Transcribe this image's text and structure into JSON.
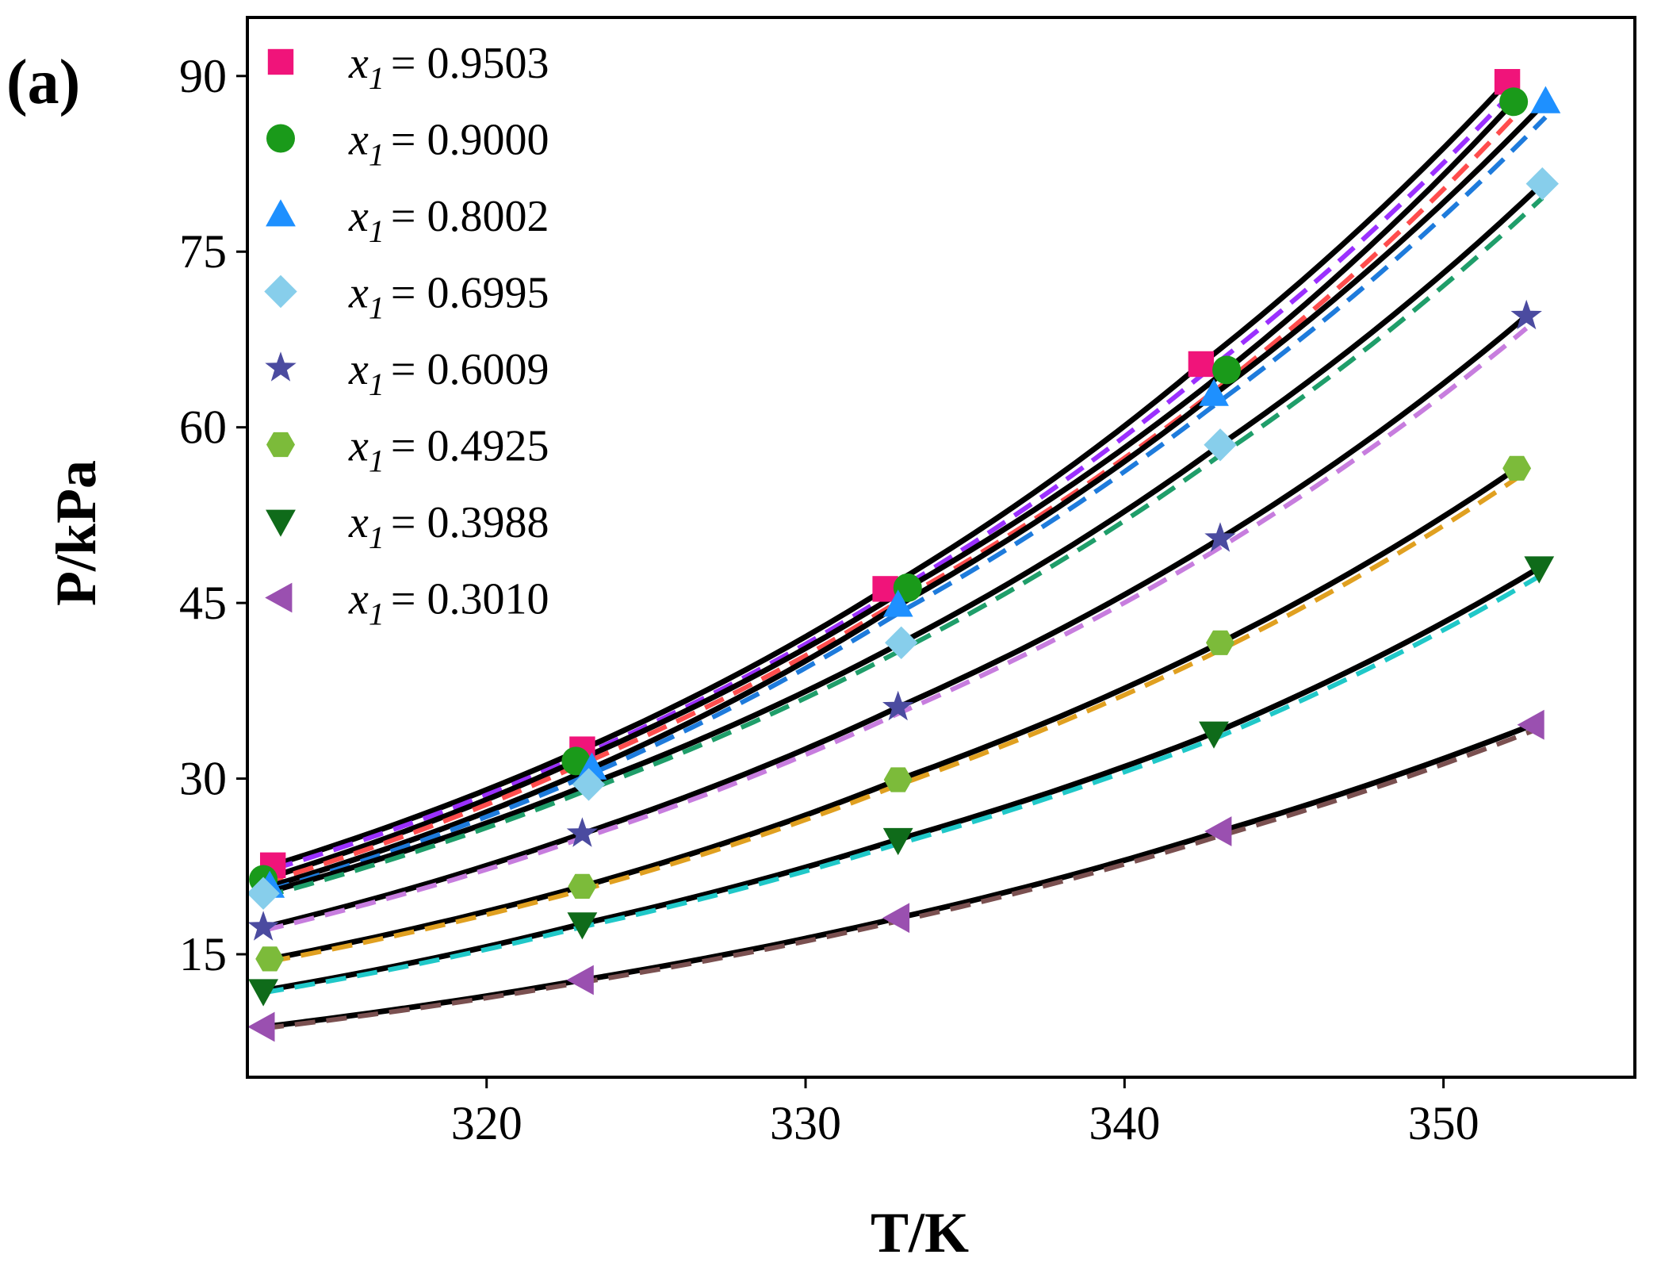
{
  "panel_label": "(a)",
  "chart_data": {
    "type": "scatter",
    "title": "",
    "xlabel": "T/K",
    "ylabel": "P/kPa",
    "xlim": [
      312.5,
      356
    ],
    "ylim": [
      4.5,
      95
    ],
    "xticks": [
      320,
      330,
      340,
      350
    ],
    "yticks": [
      15,
      30,
      45,
      60,
      75,
      90
    ],
    "legend_position": "top-left",
    "legend_var": "x",
    "legend_sub": "1",
    "series": [
      {
        "name": "x1 = 0.9503",
        "label_value": "= 0.9503",
        "marker": "square",
        "color": "#f0147a",
        "dash_color": "#9b30ff",
        "x": [
          313.3,
          323.0,
          332.5,
          342.4,
          352.0
        ],
        "y": [
          22.6,
          32.5,
          46.2,
          65.4,
          89.5
        ]
      },
      {
        "name": "x1 = 0.9000",
        "label_value": "= 0.9000",
        "marker": "circle",
        "color": "#1a9a1a",
        "dash_color": "#ff4d4d",
        "x": [
          313.0,
          322.8,
          333.2,
          343.2,
          352.2
        ],
        "y": [
          21.4,
          31.5,
          46.3,
          64.9,
          87.8
        ]
      },
      {
        "name": "x1 = 0.8002",
        "label_value": "= 0.8002",
        "marker": "triangle-up",
        "color": "#1e90ff",
        "dash_color": "#1e7bdc",
        "x": [
          313.2,
          323.3,
          332.9,
          342.8,
          353.2
        ],
        "y": [
          20.8,
          30.9,
          44.8,
          62.8,
          87.8
        ]
      },
      {
        "name": "x1 = 0.6995",
        "label_value": "= 0.6995",
        "marker": "diamond",
        "color": "#87ceeb",
        "dash_color": "#1f9e6a",
        "x": [
          313.0,
          323.2,
          333.0,
          343.0,
          353.1
        ],
        "y": [
          20.2,
          29.5,
          41.6,
          58.5,
          80.8
        ]
      },
      {
        "name": "x1 = 0.6009",
        "label_value": "= 0.6009",
        "marker": "star",
        "color": "#4b4ba0",
        "dash_color": "#c77dde",
        "x": [
          313.0,
          323.0,
          332.9,
          343.0,
          352.6
        ],
        "y": [
          17.3,
          25.3,
          36.1,
          50.5,
          69.5
        ]
      },
      {
        "name": "x1 = 0.4925",
        "label_value": "= 0.4925",
        "marker": "hexagon",
        "color": "#7cbb3a",
        "dash_color": "#e0a020",
        "x": [
          313.2,
          323.0,
          332.9,
          343.0,
          352.3
        ],
        "y": [
          14.6,
          20.8,
          29.9,
          41.6,
          56.5
        ]
      },
      {
        "name": "x1 = 0.3988",
        "label_value": "= 0.3988",
        "marker": "triangle-down",
        "color": "#0f6b1a",
        "dash_color": "#20c8c8",
        "x": [
          313.0,
          323.0,
          332.9,
          342.8,
          353.0
        ],
        "y": [
          11.9,
          17.6,
          24.8,
          33.9,
          48.0
        ]
      },
      {
        "name": "x1 = 0.3010",
        "label_value": "= 0.3010",
        "marker": "triangle-left",
        "color": "#9a50b0",
        "dash_color": "#7a5050",
        "x": [
          313.0,
          323.0,
          332.9,
          343.0,
          352.8
        ],
        "y": [
          8.8,
          12.8,
          18.1,
          25.5,
          34.6
        ]
      }
    ]
  }
}
